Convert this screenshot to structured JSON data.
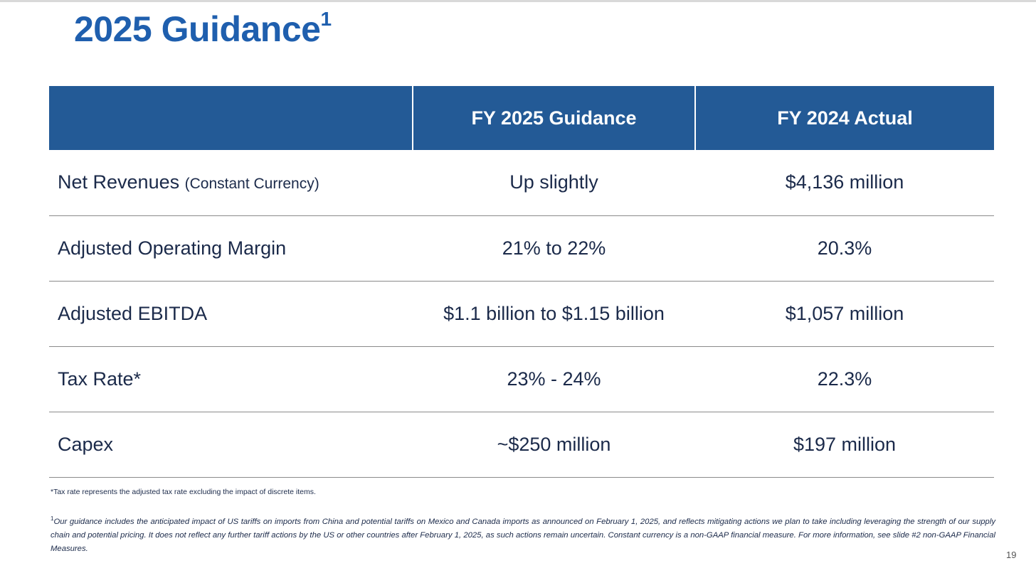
{
  "slide": {
    "title": "2025 Guidance",
    "title_footnote_mark": "1",
    "page_number": "19"
  },
  "table": {
    "headers": [
      "",
      "FY 2025 Guidance",
      "FY 2024 Actual"
    ],
    "rows": [
      {
        "label": "Net Revenues",
        "qualifier": "(Constant Currency)",
        "guidance": "Up slightly",
        "actual": "$4,136 million"
      },
      {
        "label": "Adjusted Operating Margin",
        "qualifier": "",
        "guidance": "21% to 22%",
        "actual": "20.3%"
      },
      {
        "label": "Adjusted EBITDA",
        "qualifier": "",
        "guidance": "$1.1 billion to $1.15 billion",
        "actual": "$1,057 million"
      },
      {
        "label": "Tax Rate*",
        "qualifier": "",
        "guidance": "23% - 24%",
        "actual": "22.3%"
      },
      {
        "label": "Capex",
        "qualifier": "",
        "guidance": "~$250 million",
        "actual": "$197 million"
      }
    ]
  },
  "footnotes": {
    "tax_note": "*Tax rate represents the adjusted tax rate excluding the impact of discrete items.",
    "guidance_note_mark": "1",
    "guidance_note": "Our guidance includes the anticipated impact of US tariffs on imports from China and potential tariffs on Mexico and Canada imports as announced on February 1, 2025, and reflects mitigating actions we plan to take including leveraging the strength of our supply chain and potential pricing. It does not reflect any further tariff actions by the US or other countries after February 1, 2025, as such actions remain uncertain. Constant currency is a non-GAAP financial measure. For more information, see slide #2 non-GAAP Financial Measures."
  },
  "colors": {
    "title": "#1f5fae",
    "header_bg": "#235a96",
    "body_text": "#1b2a4a"
  }
}
